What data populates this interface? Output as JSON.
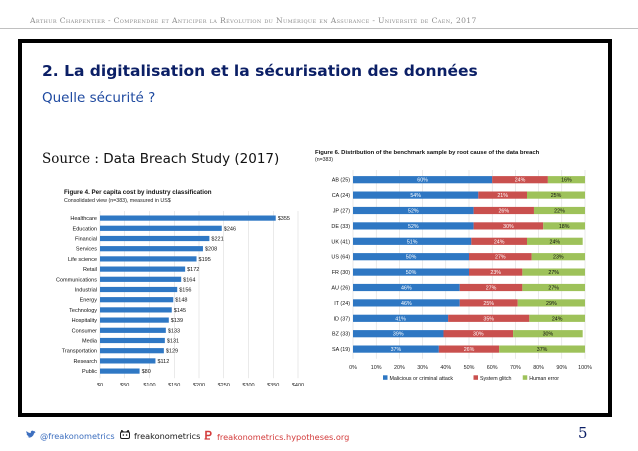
{
  "header": {
    "text": "Arthur Charpentier - Comprendre et Anticiper la Révolution du Numérique en Assurance - Université de Caen, 2017"
  },
  "slide": {
    "title": "2. La digitalisation et la sécurisation des données",
    "subtitle": "Quelle sécurité ?",
    "source_label": "Source :",
    "source_value": "Data Breach Study (2017)"
  },
  "colors": {
    "bar_blue": "#2f78c4",
    "seg_blue": "#2e77c3",
    "seg_red": "#c9504e",
    "seg_green": "#9ec25a",
    "title_navy": "#0b1f66",
    "footer_blue": "#3d6fbf",
    "footer_red": "#d33b3b"
  },
  "chart_data": [
    {
      "type": "bar",
      "title": "Figure 4. Per capita cost by industry classification",
      "subtitle": "Consolidated view (n=383), measured in US$",
      "orientation": "horizontal",
      "categories": [
        "Healthcare",
        "Education",
        "Financial",
        "Services",
        "Life science",
        "Retail",
        "Communications",
        "Industrial",
        "Energy",
        "Technology",
        "Hospitality",
        "Consumer",
        "Media",
        "Transportation",
        "Research",
        "Public"
      ],
      "values": [
        355,
        246,
        221,
        208,
        195,
        172,
        164,
        156,
        148,
        145,
        139,
        133,
        131,
        129,
        112,
        80
      ],
      "value_labels": [
        "$355",
        "$246",
        "$221",
        "$208",
        "$195",
        "$172",
        "$164",
        "$156",
        "$148",
        "$145",
        "$139",
        "$133",
        "$131",
        "$129",
        "$112",
        "$80"
      ],
      "xlim": [
        0,
        400
      ],
      "xticks": [
        "$0",
        "$50",
        "$100",
        "$150",
        "$200",
        "$250",
        "$300",
        "$350",
        "$400"
      ],
      "grid": true
    },
    {
      "type": "bar",
      "stacked": true,
      "orientation": "horizontal",
      "title": "Figure 6. Distribution of the benchmark sample by root cause of the data breach",
      "subtitle": "(n=383)",
      "categories": [
        "AB (25)",
        "CA (24)",
        "JP (27)",
        "DE (33)",
        "UK (41)",
        "US (64)",
        "FR (30)",
        "AU (26)",
        "IT (24)",
        "ID (37)",
        "BZ (33)",
        "SA (19)"
      ],
      "series": [
        {
          "name": "Malicious or criminal attack",
          "values": [
            60,
            54,
            52,
            52,
            51,
            50,
            50,
            46,
            46,
            41,
            39,
            37
          ]
        },
        {
          "name": "System glitch",
          "values": [
            24,
            21,
            26,
            30,
            24,
            27,
            23,
            27,
            25,
            35,
            30,
            26
          ]
        },
        {
          "name": "Human error",
          "values": [
            16,
            25,
            22,
            18,
            24,
            23,
            27,
            27,
            29,
            24,
            30,
            37
          ]
        }
      ],
      "xlim": [
        0,
        100
      ],
      "xticks": [
        "0%",
        "10%",
        "20%",
        "30%",
        "40%",
        "50%",
        "60%",
        "70%",
        "80%",
        "90%",
        "100%"
      ],
      "legend_position": "bottom",
      "grid": true
    }
  ],
  "footer": {
    "twitter": "@freakonometrics",
    "github": "freakonometrics",
    "blog": "freakonometrics.hypotheses.org",
    "page": "5"
  }
}
